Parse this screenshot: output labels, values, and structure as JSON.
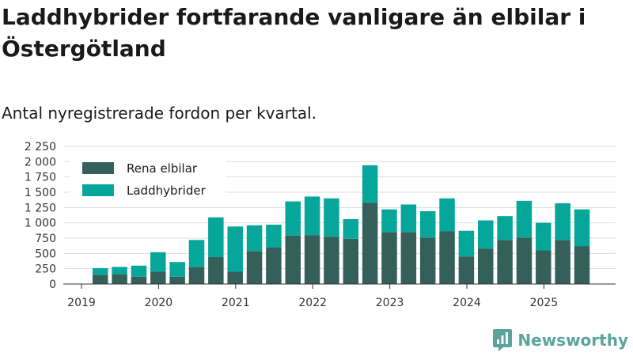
{
  "title": "Laddhybrider fortfarande vanligare än elbilar i Östergötland",
  "subtitle": "Antal nyregistrerade fordon per kvartal.",
  "brand": {
    "name": "Newsworthy",
    "icon": "newsworthy-logo-icon",
    "color": "#5aa59b"
  },
  "colors": {
    "rena_elbilar": "#35605a",
    "laddhybrider": "#06a69b",
    "grid": "#dddddd",
    "axis": "#333333"
  },
  "chart_data": {
    "type": "bar",
    "stacked": true,
    "title": "Laddhybrider fortfarande vanligare än elbilar i Östergötland",
    "subtitle": "Antal nyregistrerade fordon per kvartal.",
    "xlabel": "",
    "ylabel": "",
    "ylim": [
      0,
      2250
    ],
    "yticks": [
      0,
      250,
      500,
      750,
      1000,
      1250,
      1500,
      1750,
      2000,
      2250
    ],
    "ytick_labels": [
      "0",
      "250",
      "500",
      "750",
      "1 000",
      "1 250",
      "1 500",
      "1 750",
      "2 000",
      "2 250"
    ],
    "xticks": [
      "2019",
      "2020",
      "2021",
      "2022",
      "2023",
      "2024",
      "2025"
    ],
    "legend_position": "top-left",
    "grid": true,
    "categories": [
      "2019 Q2",
      "2019 Q3",
      "2019 Q4",
      "2020 Q1",
      "2020 Q2",
      "2020 Q3",
      "2020 Q4",
      "2021 Q1",
      "2021 Q2",
      "2021 Q3",
      "2021 Q4",
      "2022 Q1",
      "2022 Q2",
      "2022 Q3",
      "2022 Q4",
      "2023 Q1",
      "2023 Q2",
      "2023 Q3",
      "2023 Q4",
      "2024 Q1",
      "2024 Q2",
      "2024 Q3",
      "2024 Q4",
      "2025 Q1",
      "2025 Q2",
      "2025 Q3"
    ],
    "series": [
      {
        "name": "Rena elbilar",
        "values": [
          150,
          160,
          120,
          200,
          120,
          280,
          440,
          200,
          540,
          600,
          790,
          800,
          770,
          740,
          1330,
          850,
          850,
          760,
          860,
          450,
          580,
          720,
          760,
          550,
          720,
          620
        ]
      },
      {
        "name": "Laddhybrider",
        "values": [
          110,
          120,
          180,
          320,
          240,
          440,
          650,
          740,
          420,
          370,
          560,
          630,
          630,
          320,
          610,
          370,
          450,
          430,
          540,
          420,
          460,
          390,
          600,
          450,
          600,
          600
        ]
      }
    ]
  }
}
